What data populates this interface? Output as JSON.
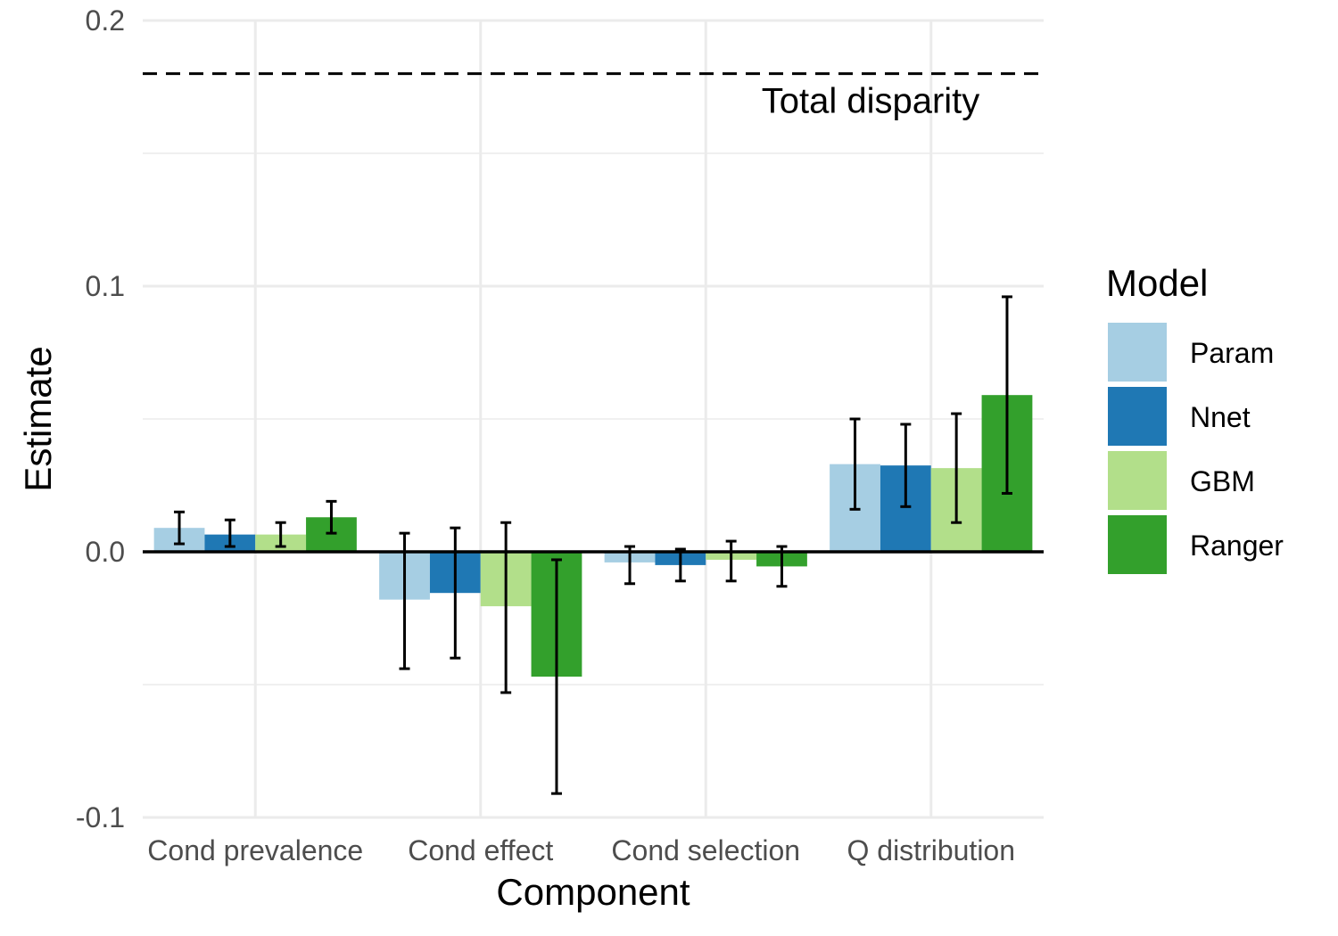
{
  "chart_data": {
    "type": "bar",
    "xlabel": "Component",
    "ylabel": "Estimate",
    "ylim": [
      -0.1,
      0.2
    ],
    "yticks": [
      -0.1,
      0.0,
      0.1,
      0.2
    ],
    "ytick_labels": [
      "-0.1",
      "0.0",
      "0.1",
      "0.2"
    ],
    "categories": [
      "Cond prevalence",
      "Cond effect",
      "Cond selection",
      "Q distribution"
    ],
    "series": [
      {
        "name": "Param",
        "color": "#a6cee3",
        "values": [
          0.009,
          -0.018,
          -0.004,
          0.033
        ],
        "lower": [
          0.003,
          -0.044,
          -0.012,
          0.016
        ],
        "upper": [
          0.015,
          0.007,
          0.002,
          0.05
        ]
      },
      {
        "name": "Nnet",
        "color": "#1f78b4",
        "values": [
          0.0065,
          -0.0155,
          -0.005,
          0.0325
        ],
        "lower": [
          0.002,
          -0.04,
          -0.011,
          0.017
        ],
        "upper": [
          0.012,
          0.009,
          0.001,
          0.048
        ]
      },
      {
        "name": "GBM",
        "color": "#b2df8a",
        "values": [
          0.0065,
          -0.0205,
          -0.003,
          0.0315
        ],
        "lower": [
          0.002,
          -0.053,
          -0.011,
          0.011
        ],
        "upper": [
          0.011,
          0.011,
          0.004,
          0.052
        ]
      },
      {
        "name": "Ranger",
        "color": "#33a02c",
        "values": [
          0.013,
          -0.047,
          -0.0055,
          0.059
        ],
        "lower": [
          0.007,
          -0.091,
          -0.013,
          0.022
        ],
        "upper": [
          0.019,
          -0.003,
          0.002,
          0.096
        ]
      }
    ],
    "reference_line": {
      "label": "Total disparity",
      "value": 0.18,
      "style": "dashed"
    },
    "legend": {
      "title": "Model",
      "position": "right"
    },
    "grid": true
  }
}
